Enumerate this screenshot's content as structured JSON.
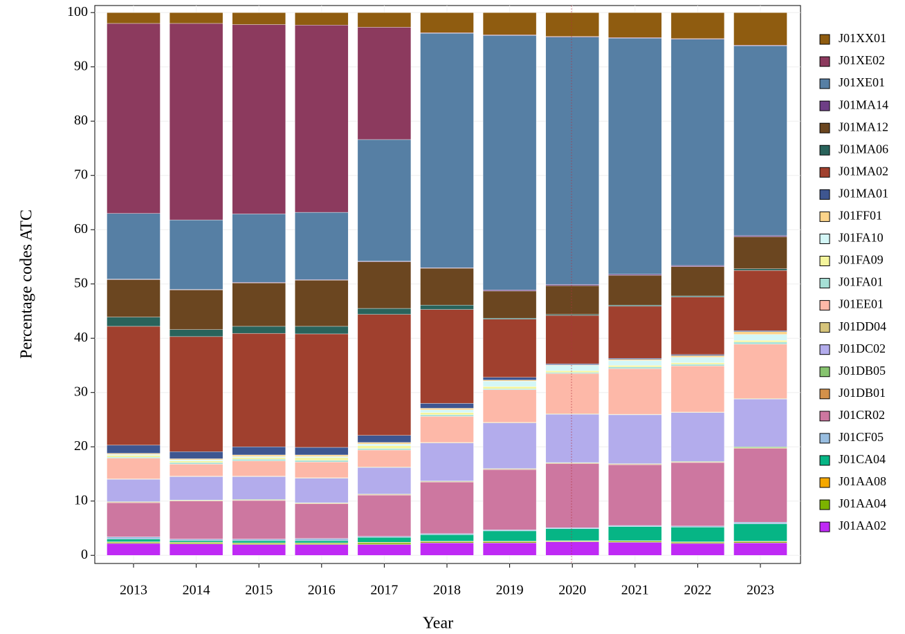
{
  "chart_data": {
    "type": "stacked_bar",
    "x_label": "Year",
    "y_label": "Percentage codes ATC",
    "categories": [
      "2013",
      "2014",
      "2015",
      "2016",
      "2017",
      "2018",
      "2019",
      "2020",
      "2021",
      "2022",
      "2023"
    ],
    "ylim": [
      -1.5,
      101.3
    ],
    "yticks": [
      0,
      10,
      20,
      30,
      40,
      50,
      60,
      70,
      80,
      90,
      100
    ],
    "grid": true,
    "legend": "right",
    "series": [
      {
        "name": "J01AA02",
        "color": "#bf2af5",
        "values": [
          2.2,
          2.1,
          2.0,
          2.0,
          2.0,
          2.3,
          2.3,
          2.5,
          2.4,
          2.2,
          2.3
        ]
      },
      {
        "name": "J01AA04",
        "color": "#7cb300",
        "values": [
          0.2,
          0.2,
          0.2,
          0.2,
          0.3,
          0.2,
          0.2,
          0.1,
          0.2,
          0.2,
          0.2
        ]
      },
      {
        "name": "J01AA08",
        "color": "#f5a800",
        "values": [
          0.1,
          0.1,
          0.1,
          0.1,
          0.1,
          0.1,
          0.1,
          0.1,
          0.1,
          0.1,
          0.1
        ]
      },
      {
        "name": "J01CA04",
        "color": "#06b585",
        "values": [
          0.5,
          0.3,
          0.4,
          0.4,
          0.9,
          1.2,
          1.9,
          2.2,
          2.6,
          2.7,
          3.2
        ]
      },
      {
        "name": "J01CF05",
        "color": "#98bde0",
        "values": [
          0.4,
          0.3,
          0.3,
          0.4,
          0.2,
          0.2,
          0.2,
          0.2,
          0.2,
          0.2,
          0.3
        ]
      },
      {
        "name": "J01CR02",
        "color": "#cd77a0",
        "values": [
          6.3,
          7.0,
          7.1,
          6.4,
          7.6,
          9.5,
          11.1,
          11.8,
          11.2,
          11.7,
          13.6
        ]
      },
      {
        "name": "J01DB01",
        "color": "#d4914a",
        "values": [
          0.1,
          0.1,
          0.1,
          0.1,
          0.1,
          0.1,
          0.1,
          0.1,
          0.1,
          0.1,
          0.1
        ]
      },
      {
        "name": "J01DB05",
        "color": "#87c46f",
        "values": [
          0.1,
          0.1,
          0.1,
          0.1,
          0.1,
          0.1,
          0.1,
          0.1,
          0.1,
          0.1,
          0.2
        ]
      },
      {
        "name": "J01DC02",
        "color": "#b3acec",
        "values": [
          4.1,
          4.3,
          4.2,
          4.5,
          4.9,
          7.0,
          8.4,
          8.9,
          9.0,
          9.0,
          8.8
        ]
      },
      {
        "name": "J01DD04",
        "color": "#d6c47a",
        "values": [
          0.1,
          0.1,
          0.1,
          0.1,
          0.1,
          0.1,
          0.1,
          0.1,
          0.1,
          0.1,
          0.1
        ]
      },
      {
        "name": "J01EE01",
        "color": "#fdb8a8",
        "values": [
          3.8,
          2.2,
          2.8,
          2.9,
          3.1,
          4.8,
          6.0,
          7.4,
          8.4,
          8.5,
          10.0
        ]
      },
      {
        "name": "J01FA01",
        "color": "#a6e0d6",
        "values": [
          0.2,
          0.3,
          0.3,
          0.3,
          0.3,
          0.3,
          0.2,
          0.2,
          0.3,
          0.3,
          0.4
        ]
      },
      {
        "name": "J01FA09",
        "color": "#f4f59c",
        "values": [
          0.3,
          0.3,
          0.3,
          0.5,
          0.5,
          0.4,
          0.4,
          0.3,
          0.3,
          0.3,
          0.3
        ]
      },
      {
        "name": "J01FA10",
        "color": "#d4f7f7",
        "values": [
          0.2,
          0.2,
          0.2,
          0.2,
          0.3,
          0.5,
          1.0,
          1.0,
          0.9,
          1.0,
          1.1
        ]
      },
      {
        "name": "J01FF01",
        "color": "#fcd48a",
        "values": [
          0.2,
          0.2,
          0.3,
          0.3,
          0.3,
          0.3,
          0.2,
          0.1,
          0.2,
          0.3,
          0.5
        ]
      },
      {
        "name": "J01MA01",
        "color": "#3e5690",
        "values": [
          1.5,
          1.3,
          1.5,
          1.4,
          1.3,
          0.9,
          0.5,
          0.2,
          0.2,
          0.2,
          0.2
        ]
      },
      {
        "name": "J01MA02",
        "color": "#a0402e",
        "values": [
          21.9,
          21.2,
          20.9,
          20.9,
          22.3,
          17.3,
          10.7,
          8.9,
          9.6,
          10.6,
          11.1
        ]
      },
      {
        "name": "J01MA06",
        "color": "#29635b",
        "values": [
          1.7,
          1.3,
          1.3,
          1.4,
          1.1,
          0.8,
          0.2,
          0.2,
          0.2,
          0.2,
          0.3
        ]
      },
      {
        "name": "J01MA12",
        "color": "#6b4620",
        "values": [
          6.9,
          7.3,
          8.0,
          8.5,
          8.6,
          6.8,
          5.0,
          5.3,
          5.5,
          5.4,
          5.9
        ]
      },
      {
        "name": "J01MA14",
        "color": "#6e3e86",
        "values": [
          0.1,
          0.1,
          0.1,
          0.1,
          0.1,
          0.1,
          0.2,
          0.2,
          0.2,
          0.2,
          0.2
        ]
      },
      {
        "name": "J01XE01",
        "color": "#567fa4",
        "values": [
          12.1,
          12.8,
          12.6,
          12.4,
          22.4,
          43.2,
          46.9,
          45.6,
          43.5,
          41.7,
          35.0
        ]
      },
      {
        "name": "J01XE02",
        "color": "#8c3a5e",
        "values": [
          35.0,
          36.2,
          34.9,
          34.5,
          20.7,
          0.1,
          0.1,
          0.1,
          0.1,
          0.1,
          0.1
        ]
      },
      {
        "name": "J01XX01",
        "color": "#8f5c10",
        "values": [
          2.0,
          2.0,
          2.2,
          2.3,
          2.7,
          3.7,
          4.1,
          4.4,
          4.6,
          4.8,
          6.0
        ]
      }
    ]
  }
}
